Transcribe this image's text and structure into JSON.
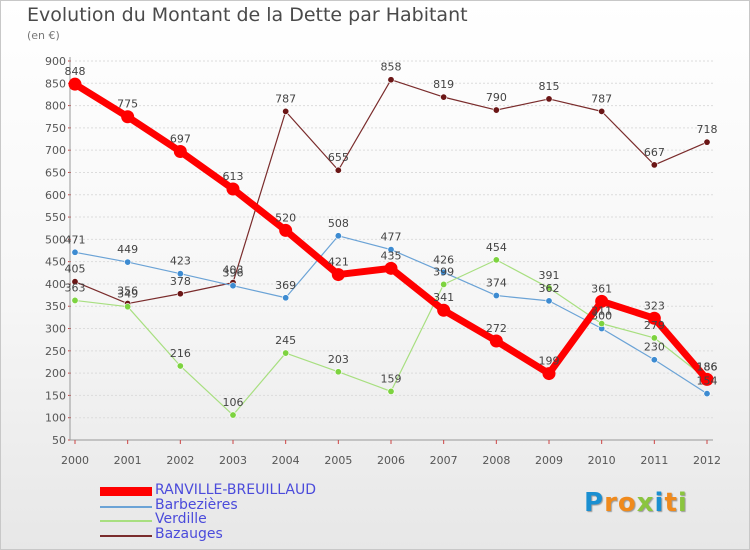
{
  "title": "Evolution du Montant de la Dette par Habitant",
  "unit_label": "(en €)",
  "logo": {
    "letters": [
      "P",
      "r",
      "o",
      "x",
      "i",
      "t",
      "i"
    ],
    "colors": [
      "#1a8fd1",
      "#f08a1c",
      "#f08a1c",
      "#8bc53f",
      "#1a8fd1",
      "#f08a1c",
      "#8bc53f"
    ]
  },
  "chart_data": {
    "type": "line",
    "title": "Evolution du Montant de la Dette par Habitant",
    "subtitle": "(en €)",
    "xlabel": "",
    "ylabel": "",
    "categories": [
      "2000",
      "2001",
      "2002",
      "2003",
      "2004",
      "2005",
      "2006",
      "2007",
      "2008",
      "2009",
      "2010",
      "2011",
      "2012"
    ],
    "ylim": [
      50,
      900
    ],
    "yticks": [
      50,
      100,
      150,
      200,
      250,
      300,
      350,
      400,
      450,
      500,
      550,
      600,
      650,
      700,
      750,
      800,
      850,
      900
    ],
    "grid": "horizontal",
    "legend_position": "bottom-left",
    "series": [
      {
        "name": "RANVILLE-BREUILLAUD",
        "color": "#ff0000",
        "marker_color": "#ff0000",
        "width": 7,
        "values": [
          848,
          775,
          697,
          613,
          520,
          421,
          435,
          341,
          272,
          199,
          361,
          323,
          186
        ],
        "labels": [
          "848",
          "775",
          "697",
          "613",
          "520",
          "421",
          "435",
          "341",
          "272",
          "199",
          "361",
          "323",
          "186"
        ]
      },
      {
        "name": "Barbezières",
        "color": "#6ba3d6",
        "marker_color": "#3d8bd1",
        "width": 1.2,
        "values": [
          471,
          449,
          423,
          396,
          369,
          508,
          477,
          426,
          374,
          362,
          300,
          230,
          154
        ],
        "labels": [
          "471",
          "449",
          "423",
          "396",
          "369",
          "508",
          "477",
          "426",
          "374",
          "362",
          "300",
          "230",
          "154"
        ]
      },
      {
        "name": "Verdille",
        "color": "#a8df80",
        "marker_color": "#7dd33f",
        "width": 1.2,
        "values": [
          363,
          349,
          216,
          106,
          245,
          203,
          159,
          399,
          454,
          391,
          311,
          279,
          186
        ],
        "labels": [
          "363",
          "349",
          "216",
          "106",
          "245",
          "203",
          "159",
          "399",
          "454",
          "391",
          "311",
          "279",
          "186"
        ]
      },
      {
        "name": "Bazauges",
        "color": "#7a2c2c",
        "marker_color": "#6b1616",
        "width": 1.2,
        "values": [
          405,
          356,
          378,
          403,
          787,
          655,
          858,
          819,
          790,
          815,
          787,
          667,
          718
        ],
        "labels": [
          "405",
          "356",
          "378",
          "403",
          "787",
          "655",
          "858",
          "819",
          "790",
          "815",
          "787",
          "667",
          "718"
        ]
      }
    ]
  }
}
